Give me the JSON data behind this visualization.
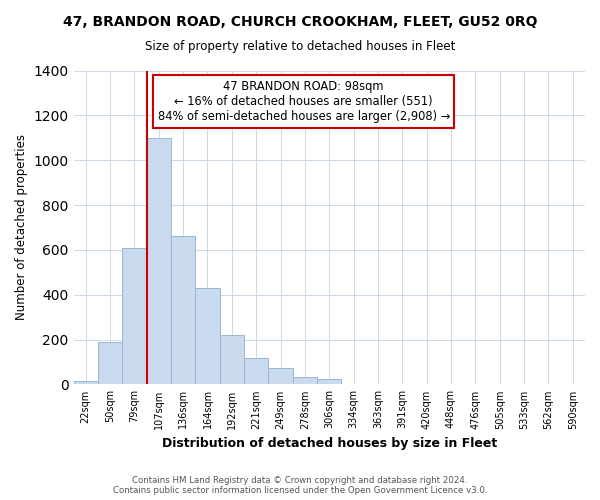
{
  "title": "47, BRANDON ROAD, CHURCH CROOKHAM, FLEET, GU52 0RQ",
  "subtitle": "Size of property relative to detached houses in Fleet",
  "xlabel": "Distribution of detached houses by size in Fleet",
  "ylabel": "Number of detached properties",
  "bin_labels": [
    "22sqm",
    "50sqm",
    "79sqm",
    "107sqm",
    "136sqm",
    "164sqm",
    "192sqm",
    "221sqm",
    "249sqm",
    "278sqm",
    "306sqm",
    "334sqm",
    "363sqm",
    "391sqm",
    "420sqm",
    "448sqm",
    "476sqm",
    "505sqm",
    "533sqm",
    "562sqm",
    "590sqm"
  ],
  "bar_heights": [
    15,
    190,
    610,
    1100,
    660,
    430,
    220,
    120,
    75,
    35,
    25,
    0,
    0,
    0,
    0,
    0,
    0,
    0,
    0,
    0,
    0
  ],
  "bar_color": "#c9d9ee",
  "bar_edge_color": "#9ab5d5",
  "vline_color": "#cc0000",
  "annotation_text": "47 BRANDON ROAD: 98sqm\n← 16% of detached houses are smaller (551)\n84% of semi-detached houses are larger (2,908) →",
  "annotation_box_color": "#ffffff",
  "annotation_box_edge": "#cc0000",
  "footer_line1": "Contains HM Land Registry data © Crown copyright and database right 2024.",
  "footer_line2": "Contains public sector information licensed under the Open Government Licence v3.0.",
  "ylim": [
    0,
    1400
  ],
  "yticks": [
    0,
    200,
    400,
    600,
    800,
    1000,
    1200,
    1400
  ],
  "background_color": "#ffffff",
  "grid_color": "#cdd9e8"
}
